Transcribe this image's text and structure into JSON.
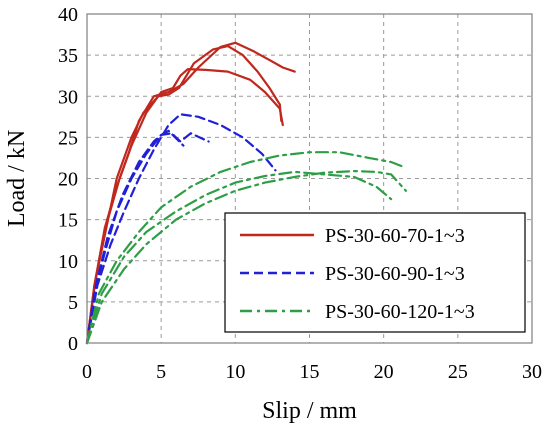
{
  "chart_data": {
    "type": "line",
    "xlabel": "Slip / mm",
    "ylabel": "Load / kN",
    "xlim": [
      0,
      30
    ],
    "ylim": [
      0,
      40
    ],
    "xticks": [
      0,
      5,
      10,
      15,
      20,
      25,
      30
    ],
    "yticks": [
      0,
      5,
      10,
      15,
      20,
      25,
      30,
      35,
      40
    ],
    "grid": true,
    "grid_style": "dashed",
    "legend_position": "bottom-right",
    "series": [
      {
        "name": "PS-30-60-70-1~3",
        "color": "#c0281e",
        "dash": "solid",
        "curves": [
          [
            [
              0,
              0
            ],
            [
              0.5,
              7
            ],
            [
              1.2,
              14
            ],
            [
              2,
              19
            ],
            [
              2.8,
              23
            ],
            [
              3.5,
              27
            ],
            [
              4.5,
              30
            ],
            [
              5.5,
              30.5
            ],
            [
              6.5,
              31.5
            ],
            [
              7.5,
              33.5
            ],
            [
              9,
              36
            ],
            [
              10,
              36.5
            ],
            [
              11.2,
              35.5
            ],
            [
              12.2,
              34.5
            ],
            [
              13.2,
              33.5
            ],
            [
              14,
              33
            ]
          ],
          [
            [
              0,
              0
            ],
            [
              0.6,
              8
            ],
            [
              1.3,
              14
            ],
            [
              2,
              20
            ],
            [
              3,
              25
            ],
            [
              3.8,
              28
            ],
            [
              4.8,
              30
            ],
            [
              5.5,
              30.2
            ],
            [
              6.2,
              31
            ],
            [
              7.2,
              34
            ],
            [
              8.5,
              35.7
            ],
            [
              9.5,
              36.1
            ],
            [
              10.5,
              35
            ],
            [
              11.5,
              33
            ],
            [
              12.3,
              31
            ],
            [
              13,
              29
            ],
            [
              13.1,
              27
            ]
          ],
          [
            [
              0,
              0
            ],
            [
              0.5,
              7
            ],
            [
              1.4,
              15
            ],
            [
              2.2,
              20
            ],
            [
              3,
              24
            ],
            [
              4,
              28
            ],
            [
              5,
              30.5
            ],
            [
              5.8,
              31
            ],
            [
              6.3,
              32.5
            ],
            [
              6.8,
              33.3
            ],
            [
              8,
              33.2
            ],
            [
              9.5,
              33
            ],
            [
              11,
              32
            ],
            [
              12,
              30.5
            ],
            [
              13,
              28.5
            ],
            [
              13.2,
              26.5
            ]
          ]
        ]
      },
      {
        "name": "PS-30-60-90-1~3",
        "color": "#2020d8",
        "dash": "dashed",
        "curves": [
          [
            [
              0,
              0
            ],
            [
              0.5,
              6
            ],
            [
              1.2,
              11
            ],
            [
              2,
              16
            ],
            [
              3,
              20
            ],
            [
              4,
              23
            ],
            [
              5,
              25.3
            ],
            [
              5.5,
              25.8
            ],
            [
              6.5,
              24
            ]
          ],
          [
            [
              0,
              0
            ],
            [
              0.6,
              7
            ],
            [
              1.4,
              13
            ],
            [
              2.4,
              18
            ],
            [
              3.5,
              22
            ],
            [
              4.5,
              24.5
            ],
            [
              5,
              25.3
            ],
            [
              5.7,
              25.5
            ],
            [
              6.3,
              24.5
            ],
            [
              7,
              25.5
            ],
            [
              8.2,
              24.5
            ]
          ],
          [
            [
              0,
              0
            ],
            [
              0.7,
              7
            ],
            [
              1.6,
              12
            ],
            [
              2.5,
              16
            ],
            [
              3.5,
              20
            ],
            [
              4.5,
              23.5
            ],
            [
              5.5,
              26.5
            ],
            [
              6.3,
              27.8
            ],
            [
              7.5,
              27.5
            ],
            [
              9,
              26.5
            ],
            [
              10.5,
              25
            ],
            [
              11.8,
              23
            ],
            [
              12.7,
              21
            ]
          ]
        ]
      },
      {
        "name": "PS-30-60-120-1~3",
        "color": "#2e9e46",
        "dash": "dashdot",
        "curves": [
          [
            [
              0,
              0
            ],
            [
              1,
              6
            ],
            [
              2.5,
              10.5
            ],
            [
              4,
              13.5
            ],
            [
              6,
              16
            ],
            [
              8,
              18
            ],
            [
              10,
              19.5
            ],
            [
              12,
              20.3
            ],
            [
              14,
              20.8
            ],
            [
              16,
              20.5
            ],
            [
              18,
              20.2
            ],
            [
              19.5,
              19
            ],
            [
              20.5,
              17.5
            ]
          ],
          [
            [
              0,
              0
            ],
            [
              1,
              5
            ],
            [
              2.5,
              9
            ],
            [
              4,
              12
            ],
            [
              6,
              15
            ],
            [
              8,
              17
            ],
            [
              10,
              18.5
            ],
            [
              12,
              19.5
            ],
            [
              14,
              20.2
            ],
            [
              16,
              20.7
            ],
            [
              18,
              20.9
            ],
            [
              19.5,
              20.8
            ],
            [
              20.5,
              20.5
            ],
            [
              21.5,
              18.5
            ]
          ],
          [
            [
              0,
              0
            ],
            [
              0.8,
              6
            ],
            [
              2,
              10
            ],
            [
              3.5,
              13.5
            ],
            [
              5,
              16.5
            ],
            [
              7,
              19
            ],
            [
              9,
              20.8
            ],
            [
              11,
              22
            ],
            [
              13,
              22.8
            ],
            [
              15,
              23.2
            ],
            [
              17,
              23.2
            ],
            [
              19,
              22.5
            ],
            [
              20.5,
              22
            ],
            [
              21.5,
              21.3
            ]
          ]
        ]
      }
    ]
  }
}
